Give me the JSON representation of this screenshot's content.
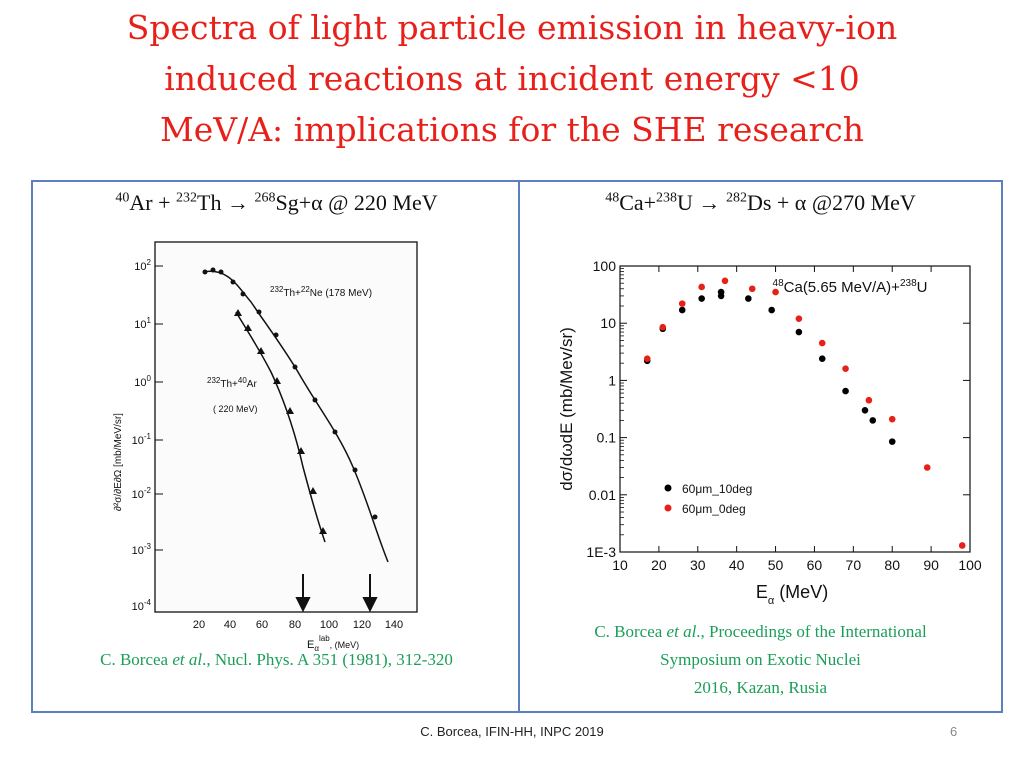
{
  "title": {
    "line1": "Spectra of light particle emission in heavy-ion",
    "line2": "induced reactions at incident energy <10",
    "line3": "MeV/A: implications for the SHE research"
  },
  "left_panel": {
    "title": {
      "a1": "40",
      "t1": "Ar + ",
      "a2": "232",
      "t2": "Th → ",
      "a3": "268",
      "t3": "Sg+α @ 220 MeV"
    },
    "citation": {
      "authors": "C. Borcea ",
      "etal": "et al",
      "rest": "., Nucl. Phys. A 351 (1981), 312-320"
    },
    "figure": {
      "y_ticks": [
        "10",
        "10",
        "10",
        "10",
        "10",
        "10",
        "10"
      ],
      "y_exponents": [
        "2",
        "1",
        "0",
        "-1",
        "-2",
        "-3",
        "-4"
      ],
      "x_ticks": [
        "20",
        "40",
        "60",
        "80",
        "100",
        "120",
        "140"
      ],
      "xlabel": "E",
      "xlabel_sub": "α",
      "xlabel_sup": "lab",
      "xlabel_unit": ", (MeV)",
      "ylabel": "∂²σ/∂E∂Ω [mb/MeV/sr]",
      "label_ne": {
        "a": "232",
        "t": "Th",
        "plus": "+",
        "a2": "22",
        "t2": "Ne (178 MeV)"
      },
      "label_ar": {
        "a": "232",
        "t": "Th",
        "plus": "+",
        "a2": "40",
        "t2": "Ar",
        "energy": "( 220 MeV)"
      }
    }
  },
  "right_panel": {
    "title": {
      "a1": "48",
      "t1": "Ca+",
      "a2": "238",
      "t2": "U → ",
      "a3": "282",
      "t3": "Ds + α  @270 MeV"
    },
    "citation": {
      "line1_a": "C. Borcea ",
      "line1_etal": "et al",
      "line1_b": "., Proceedings of the International",
      "line2": "Symposium on Exotic Nuclei",
      "line3": "2016, Kazan, Rusia"
    }
  },
  "chart_data": {
    "type": "scatter",
    "title": "",
    "annotation": {
      "a1": "48",
      "t1": "Ca(5.65 MeV/A)+",
      "a2": "238",
      "t2": "U"
    },
    "xlabel": "E",
    "xlabel_sub": "α",
    "xlabel_unit": " (MeV)",
    "ylabel": "dσ/dωdE (mb/Mev/sr)",
    "xlim": [
      10,
      100
    ],
    "ylim": [
      0.001,
      100
    ],
    "yscale": "log",
    "x_ticks": [
      "10",
      "20",
      "30",
      "40",
      "50",
      "60",
      "70",
      "80",
      "90",
      "100"
    ],
    "y_ticks": [
      "100",
      "10",
      "1",
      "0.1",
      "0.01",
      "1E-3"
    ],
    "legend_position": "bottom-left",
    "series": [
      {
        "name": "60μm_10deg",
        "color": "#000000",
        "x": [
          17,
          21,
          26,
          31,
          36,
          36,
          43,
          49,
          56,
          62,
          68,
          73,
          75,
          80
        ],
        "y": [
          2.2,
          8,
          17,
          27,
          30,
          35,
          27,
          17,
          7,
          2.4,
          0.65,
          0.3,
          0.2,
          0.085
        ]
      },
      {
        "name": "60μm_0deg",
        "color": "#e8201a",
        "x": [
          17,
          21,
          26,
          31,
          37,
          44,
          50,
          56,
          62,
          68,
          74,
          80,
          89,
          98
        ],
        "y": [
          2.4,
          8.5,
          22,
          43,
          55,
          40,
          35,
          12,
          4.5,
          1.6,
          0.45,
          0.21,
          0.03,
          0.0013
        ]
      }
    ]
  },
  "footer": {
    "text": "C. Borcea, IFIN-HH, INPC 2019",
    "page": "6"
  }
}
